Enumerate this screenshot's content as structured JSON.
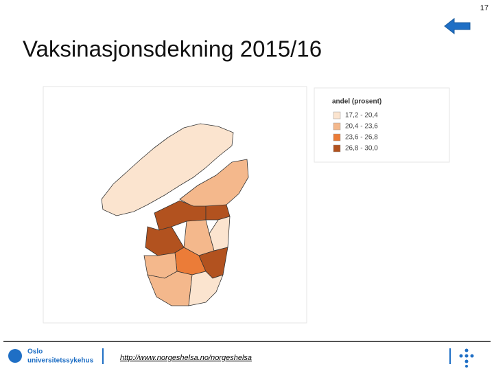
{
  "page_number": "17",
  "title": "Vaksinasjonsdekning 2015/16",
  "legend": {
    "title": "andel (prosent)",
    "items": [
      {
        "label": "17,2 - 20,4",
        "color": "#fbe4cf"
      },
      {
        "label": "20,4 - 23,6",
        "color": "#f4b88c"
      },
      {
        "label": "23,6 - 26,8",
        "color": "#eb7c38"
      },
      {
        "label": "26,8 - 30,0",
        "color": "#b2521f"
      }
    ]
  },
  "footer": {
    "link": "http://www.norgeshelsa.no/norgeshelsa",
    "logo_line1": "Oslo",
    "logo_line2": "universitetssykehus"
  }
}
